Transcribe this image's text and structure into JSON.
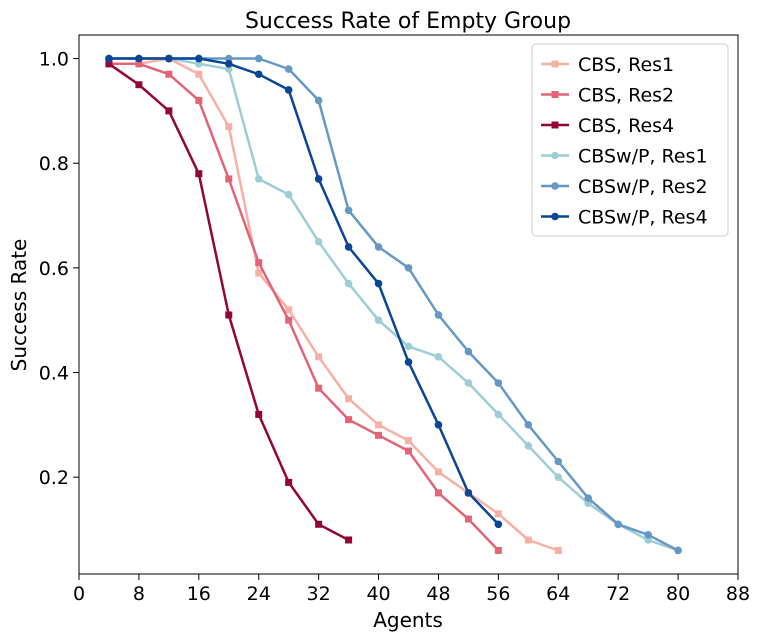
{
  "chart_data": {
    "type": "line",
    "title": "Success Rate of Empty Group",
    "xlabel": "Agents",
    "ylabel": "Success Rate",
    "xlim": [
      0,
      88
    ],
    "ylim": [
      0.015,
      1.045
    ],
    "xticks": [
      0,
      8,
      16,
      24,
      32,
      40,
      48,
      56,
      64,
      72,
      80,
      88
    ],
    "yticks": [
      0.2,
      0.4,
      0.6,
      0.8,
      1.0
    ],
    "ytick_labels": [
      "0.2",
      "0.4",
      "0.6",
      "0.8",
      "1.0"
    ],
    "grid": false,
    "legend_position": "top-right",
    "series": [
      {
        "name": "CBS, Res1",
        "color": "#f8b0a6",
        "marker": "square",
        "x": [
          4,
          8,
          12,
          16,
          20,
          24,
          28,
          32,
          36,
          40,
          44,
          48,
          52,
          56,
          60,
          64
        ],
        "y": [
          0.99,
          0.99,
          1.0,
          0.97,
          0.87,
          0.59,
          0.52,
          0.43,
          0.35,
          0.3,
          0.27,
          0.21,
          0.17,
          0.13,
          0.08,
          0.06
        ]
      },
      {
        "name": "CBS, Res2",
        "color": "#e26476",
        "marker": "square",
        "x": [
          4,
          8,
          12,
          16,
          20,
          24,
          28,
          32,
          36,
          40,
          44,
          48,
          52,
          56
        ],
        "y": [
          0.99,
          0.99,
          0.97,
          0.92,
          0.77,
          0.61,
          0.5,
          0.37,
          0.31,
          0.28,
          0.25,
          0.17,
          0.12,
          0.06
        ]
      },
      {
        "name": "CBS, Res4",
        "color": "#930537",
        "marker": "square",
        "x": [
          4,
          8,
          12,
          16,
          20,
          24,
          28,
          32,
          36
        ],
        "y": [
          0.99,
          0.95,
          0.9,
          0.78,
          0.51,
          0.32,
          0.19,
          0.11,
          0.08
        ]
      },
      {
        "name": "CBSw/P, Res1",
        "color": "#9dcdd5",
        "marker": "circle",
        "x": [
          4,
          8,
          12,
          16,
          20,
          24,
          28,
          32,
          36,
          40,
          44,
          48,
          52,
          56,
          60,
          64,
          68,
          72,
          76,
          80
        ],
        "y": [
          1.0,
          1.0,
          1.0,
          0.99,
          0.98,
          0.77,
          0.74,
          0.65,
          0.57,
          0.5,
          0.45,
          0.43,
          0.38,
          0.32,
          0.26,
          0.2,
          0.15,
          0.11,
          0.08,
          0.06
        ]
      },
      {
        "name": "CBSw/P, Res2",
        "color": "#6598c4",
        "marker": "circle",
        "x": [
          4,
          8,
          12,
          16,
          20,
          24,
          28,
          32,
          36,
          40,
          44,
          48,
          52,
          56,
          60,
          64,
          68,
          72,
          76,
          80
        ],
        "y": [
          1.0,
          1.0,
          1.0,
          1.0,
          1.0,
          1.0,
          0.98,
          0.92,
          0.71,
          0.64,
          0.6,
          0.51,
          0.44,
          0.38,
          0.3,
          0.23,
          0.16,
          0.11,
          0.09,
          0.06
        ]
      },
      {
        "name": "CBSw/P, Res4",
        "color": "#0a4596",
        "marker": "circle",
        "x": [
          4,
          8,
          12,
          16,
          20,
          24,
          28,
          32,
          36,
          40,
          44,
          48,
          52,
          56
        ],
        "y": [
          1.0,
          1.0,
          1.0,
          1.0,
          0.99,
          0.97,
          0.94,
          0.77,
          0.64,
          0.57,
          0.42,
          0.3,
          0.17,
          0.11
        ]
      }
    ]
  }
}
